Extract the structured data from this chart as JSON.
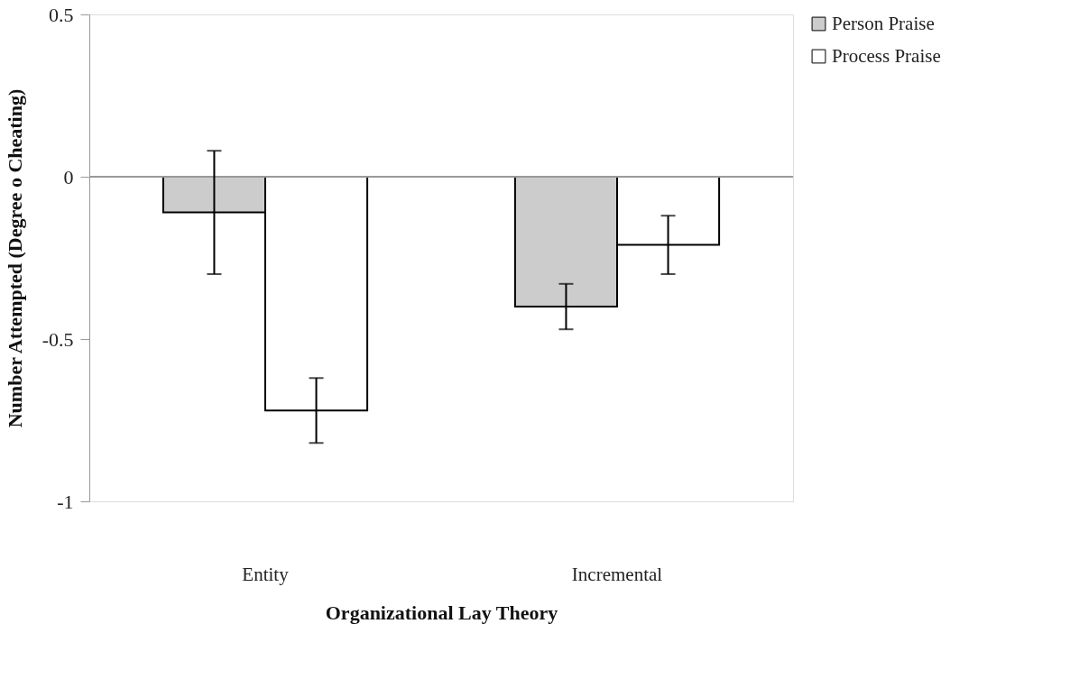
{
  "chart_data": {
    "type": "bar",
    "xlabel": "Organizational Lay Theory",
    "ylabel": "Number Attempted (Degree o Cheating)",
    "categories": [
      "Entity",
      "Incremental"
    ],
    "series": [
      {
        "name": "Person Praise",
        "color": "#cccccc",
        "values": [
          -0.11,
          -0.4
        ],
        "errors": [
          0.19,
          0.07
        ]
      },
      {
        "name": "Process Praise",
        "color": "#ffffff",
        "values": [
          -0.72,
          -0.21
        ],
        "errors": [
          0.1,
          0.09
        ]
      }
    ],
    "ylim": [
      -1,
      0.5
    ],
    "yticks": [
      -1,
      -0.5,
      0,
      0.5
    ],
    "grid": false,
    "ref_lines": [
      {
        "axis": "y",
        "value": 0,
        "color": "#999999"
      }
    ],
    "legend": "right"
  }
}
